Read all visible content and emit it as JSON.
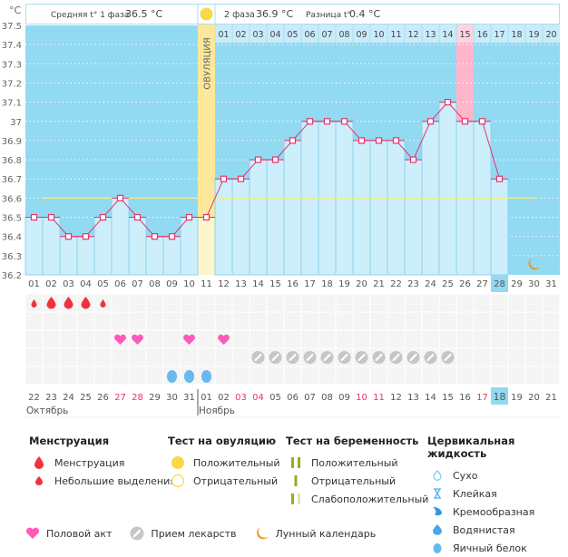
{
  "header": {
    "unit": "°C",
    "phase1_label": "Средняя t° 1 фаза",
    "phase1_value": "36.5 °C",
    "phase2_label": "2 фаза",
    "phase2_value": "36.9 °C",
    "diff_label": "Разница t°",
    "diff_value": "0.4 °C"
  },
  "colors": {
    "bg_sky": "#92d9f2",
    "bar_fill": "#cdeefb",
    "line": "#e8336a",
    "ovulation": "#fbe89a",
    "ovulation_light": "#fdf6cc",
    "period_expected": "#ffb6cb",
    "coverline": "#f3ee8c",
    "menstruation": "#f0323f",
    "heart": "#ff5ab9",
    "pill": "#c6c6c6",
    "eggwhite": "#69b8ee",
    "moon": "#f39313",
    "weekend": "#e8336a",
    "today": "#92d9f2"
  },
  "chart_data": {
    "type": "line",
    "title": "",
    "ylabel": "°C",
    "ylim": [
      36.2,
      37.5
    ],
    "yticks": [
      "37.5",
      "37.4",
      "37.3",
      "37.2",
      "37.1",
      "37",
      "36.9",
      "36.8",
      "36.7",
      "36.6",
      "36.5",
      "36.4",
      "36.3",
      "36.2"
    ],
    "coverline": 36.6,
    "ovulation_day": 11,
    "ovulation_label": "ОВУЛЯЦИЯ",
    "expected_period_day": 26,
    "today_day": 28,
    "cycle_days": [
      "01",
      "02",
      "03",
      "04",
      "05",
      "06",
      "07",
      "08",
      "09",
      "10",
      "11",
      "12",
      "13",
      "14",
      "15",
      "16",
      "17",
      "18",
      "19",
      "20",
      "21",
      "22",
      "23",
      "24",
      "25",
      "26",
      "27",
      "28",
      "29",
      "30",
      "31"
    ],
    "post_ovulation_days": [
      "01",
      "02",
      "03",
      "04",
      "05",
      "06",
      "07",
      "08",
      "09",
      "10",
      "11",
      "12",
      "13",
      "14",
      "15",
      "16",
      "17",
      "18",
      "19",
      "20"
    ],
    "highlight_post_ovulation_day": 15,
    "temperatures": [
      36.5,
      36.5,
      36.4,
      36.4,
      36.5,
      36.6,
      36.5,
      36.4,
      36.4,
      36.5,
      36.5,
      36.7,
      36.7,
      36.8,
      36.8,
      36.9,
      37.0,
      37.0,
      37.0,
      36.9,
      36.9,
      36.9,
      36.8,
      37.0,
      37.1,
      37.0,
      37.0,
      36.7
    ],
    "calendar_dates": [
      "22",
      "23",
      "24",
      "25",
      "26",
      "27",
      "28",
      "29",
      "30",
      "31",
      "01",
      "02",
      "03",
      "04",
      "05",
      "06",
      "07",
      "08",
      "09",
      "10",
      "11",
      "12",
      "13",
      "14",
      "15",
      "16",
      "17",
      "18",
      "19",
      "20",
      "21"
    ],
    "weekend_flags": [
      0,
      0,
      0,
      0,
      0,
      1,
      1,
      0,
      0,
      0,
      0,
      0,
      1,
      1,
      0,
      0,
      0,
      0,
      0,
      1,
      1,
      0,
      0,
      0,
      0,
      0,
      1,
      0,
      0,
      0,
      0
    ],
    "months": [
      {
        "label": "Октябрь",
        "start_index": 0
      },
      {
        "label": "Ноябрь",
        "start_index": 10
      }
    ],
    "markers": {
      "menstruation_heavy": [
        2,
        3,
        4
      ],
      "menstruation_light": [
        1,
        5
      ],
      "intercourse": [
        6,
        7,
        10,
        12
      ],
      "medication": [
        14,
        15,
        16,
        17,
        18,
        19,
        20,
        21,
        22,
        23,
        24,
        25
      ],
      "eggwhite": [
        9,
        10,
        11
      ],
      "moon": [
        30
      ]
    }
  },
  "legend": {
    "menstruation": {
      "title": "Менструация",
      "items": [
        "Менструация",
        "Небольшие выделения"
      ]
    },
    "ovulation_test": {
      "title": "Тест на овуляцию",
      "items": [
        "Положительный",
        "Отрицательный"
      ]
    },
    "pregnancy_test": {
      "title": "Тест на беременность",
      "items": [
        "Положительный",
        "Отрицательный",
        "Слабоположительный"
      ]
    },
    "cervical_fluid": {
      "title": "Цервикальная жидкость",
      "items": [
        "Сухо",
        "Клейкая",
        "Кремообразная",
        "Водянистая",
        "Яичный белок"
      ]
    },
    "other": {
      "intercourse": "Половой акт",
      "medication": "Прием лекарств",
      "moon": "Лунный календарь"
    }
  }
}
